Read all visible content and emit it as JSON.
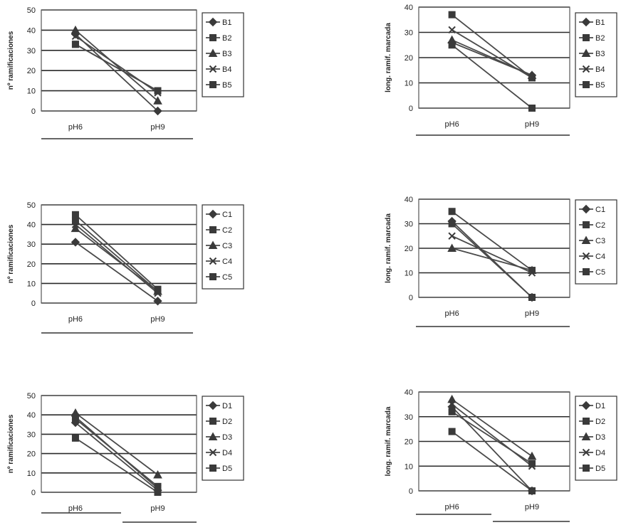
{
  "chart_data": [
    {
      "type": "line",
      "categories": [
        "pH6",
        "pH9"
      ],
      "ylabel": "nº ramificaciones",
      "ylim": [
        0,
        50
      ],
      "yticks": [
        0,
        10,
        20,
        30,
        40,
        50
      ],
      "series": [
        {
          "name": "B1",
          "marker": "diamond",
          "values": [
            38,
            0
          ]
        },
        {
          "name": "B2",
          "marker": "square",
          "values": [
            33,
            10
          ]
        },
        {
          "name": "B3",
          "marker": "triangle",
          "values": [
            40,
            5
          ]
        },
        {
          "name": "B4",
          "marker": "x",
          "values": [
            37,
            9
          ]
        },
        {
          "name": "B5",
          "marker": "square",
          "values": [
            33,
            10
          ]
        }
      ],
      "grid": true,
      "legend": "right"
    },
    {
      "type": "line",
      "categories": [
        "pH6",
        "pH9"
      ],
      "ylabel": "long. ramif. marcada",
      "ylim": [
        0,
        40
      ],
      "yticks": [
        0,
        10,
        20,
        30,
        40
      ],
      "series": [
        {
          "name": "B1",
          "marker": "diamond",
          "values": [
            26,
            13
          ]
        },
        {
          "name": "B2",
          "marker": "square",
          "values": [
            37,
            12
          ]
        },
        {
          "name": "B3",
          "marker": "triangle",
          "values": [
            27,
            13
          ]
        },
        {
          "name": "B4",
          "marker": "x",
          "values": [
            31,
            12
          ]
        },
        {
          "name": "B5",
          "marker": "square",
          "values": [
            25,
            0
          ]
        }
      ],
      "grid": true,
      "legend": "right"
    },
    {
      "type": "line",
      "categories": [
        "pH6",
        "pH9"
      ],
      "ylabel": "nº ramificaciones",
      "ylim": [
        0,
        50
      ],
      "yticks": [
        0,
        10,
        20,
        30,
        40,
        50
      ],
      "series": [
        {
          "name": "C1",
          "marker": "diamond",
          "values": [
            31,
            1
          ]
        },
        {
          "name": "C2",
          "marker": "square",
          "values": [
            45,
            7
          ]
        },
        {
          "name": "C3",
          "marker": "triangle",
          "values": [
            38,
            6
          ]
        },
        {
          "name": "C4",
          "marker": "x",
          "values": [
            40,
            5
          ]
        },
        {
          "name": "C5",
          "marker": "square",
          "values": [
            42,
            6
          ]
        }
      ],
      "grid": true,
      "legend": "right"
    },
    {
      "type": "line",
      "categories": [
        "pH6",
        "pH9"
      ],
      "ylabel": "long. ramif. marcada",
      "ylim": [
        0,
        40
      ],
      "yticks": [
        0,
        10,
        20,
        30,
        40
      ],
      "series": [
        {
          "name": "C1",
          "marker": "diamond",
          "values": [
            31,
            0
          ]
        },
        {
          "name": "C2",
          "marker": "square",
          "values": [
            35,
            11
          ]
        },
        {
          "name": "C3",
          "marker": "triangle",
          "values": [
            20,
            11
          ]
        },
        {
          "name": "C4",
          "marker": "x",
          "values": [
            25,
            10
          ]
        },
        {
          "name": "C5",
          "marker": "square",
          "values": [
            30,
            0
          ]
        }
      ],
      "grid": true,
      "legend": "right"
    },
    {
      "type": "line",
      "categories": [
        "pH6",
        "pH9"
      ],
      "ylabel": "nº ramificaciones",
      "ylim": [
        0,
        50
      ],
      "yticks": [
        0,
        10,
        20,
        30,
        40,
        50
      ],
      "series": [
        {
          "name": "D1",
          "marker": "diamond",
          "values": [
            36,
            1
          ]
        },
        {
          "name": "D2",
          "marker": "square",
          "values": [
            38,
            3
          ]
        },
        {
          "name": "D3",
          "marker": "triangle",
          "values": [
            41,
            9
          ]
        },
        {
          "name": "D4",
          "marker": "x",
          "values": [
            39,
            2
          ]
        },
        {
          "name": "D5",
          "marker": "square",
          "values": [
            28,
            0
          ]
        }
      ],
      "grid": true,
      "legend": "right"
    },
    {
      "type": "line",
      "categories": [
        "pH6",
        "pH9"
      ],
      "ylabel": "long. ramif. marcada",
      "ylim": [
        0,
        40
      ],
      "yticks": [
        0,
        10,
        20,
        30,
        40
      ],
      "series": [
        {
          "name": "D1",
          "marker": "diamond",
          "values": [
            34,
            0
          ]
        },
        {
          "name": "D2",
          "marker": "square",
          "values": [
            32,
            11
          ]
        },
        {
          "name": "D3",
          "marker": "triangle",
          "values": [
            37,
            14
          ]
        },
        {
          "name": "D4",
          "marker": "x",
          "values": [
            35,
            10
          ]
        },
        {
          "name": "D5",
          "marker": "square",
          "values": [
            24,
            0
          ]
        }
      ],
      "grid": true,
      "legend": "right"
    }
  ],
  "colors": {
    "line": "#4a4a4a",
    "grid": "#2a2a2a",
    "frame": "#555555"
  }
}
